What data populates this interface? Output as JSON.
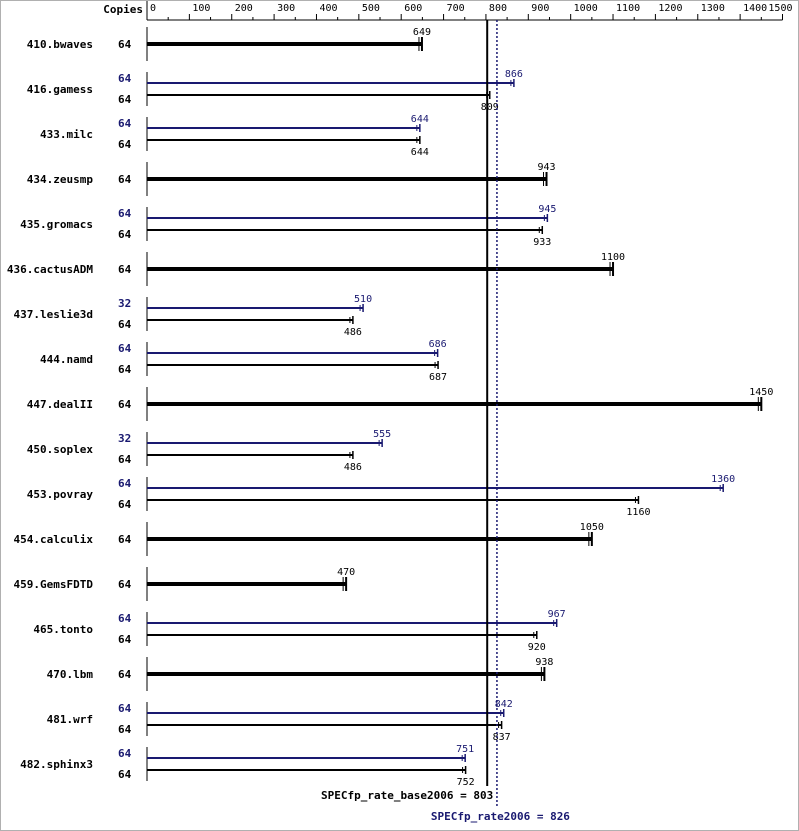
{
  "chart_data": {
    "type": "bar",
    "axis": {
      "header": "Copies",
      "ticks": [
        0,
        100,
        200,
        300,
        400,
        500,
        600,
        700,
        800,
        900,
        1000,
        1100,
        1200,
        1300,
        1400,
        1500
      ],
      "tick_labels": [
        "0",
        "100",
        "200",
        "300",
        "400",
        "500",
        "600",
        "700",
        "800",
        "900",
        "1000",
        "1100",
        "1200",
        "1300",
        "1400",
        "1500"
      ],
      "xlim": [
        0,
        1500
      ]
    },
    "colors": {
      "base": "#000000",
      "peak": "#191970"
    },
    "benchmarks": [
      {
        "name": "410.bwaves",
        "base_copies": "64",
        "base": 649,
        "base_label": "649"
      },
      {
        "name": "416.gamess",
        "peak_copies": "64",
        "peak": 866,
        "peak_label": "866",
        "base_copies": "64",
        "base": 809,
        "base_label": "809"
      },
      {
        "name": "433.milc",
        "peak_copies": "64",
        "peak": 644,
        "peak_label": "644",
        "base_copies": "64",
        "base": 644,
        "base_label": "644"
      },
      {
        "name": "434.zeusmp",
        "base_copies": "64",
        "base": 943,
        "base_label": "943"
      },
      {
        "name": "435.gromacs",
        "peak_copies": "64",
        "peak": 945,
        "peak_label": "945",
        "base_copies": "64",
        "base": 933,
        "base_label": "933"
      },
      {
        "name": "436.cactusADM",
        "base_copies": "64",
        "base": 1100,
        "base_label": "1100"
      },
      {
        "name": "437.leslie3d",
        "peak_copies": "32",
        "peak": 510,
        "peak_label": "510",
        "base_copies": "64",
        "base": 486,
        "base_label": "486"
      },
      {
        "name": "444.namd",
        "peak_copies": "64",
        "peak": 686,
        "peak_label": "686",
        "base_copies": "64",
        "base": 687,
        "base_label": "687"
      },
      {
        "name": "447.dealII",
        "base_copies": "64",
        "base": 1450,
        "base_label": "1450"
      },
      {
        "name": "450.soplex",
        "peak_copies": "32",
        "peak": 555,
        "peak_label": "555",
        "base_copies": "64",
        "base": 486,
        "base_label": "486"
      },
      {
        "name": "453.povray",
        "peak_copies": "64",
        "peak": 1360,
        "peak_label": "1360",
        "base_copies": "64",
        "base": 1160,
        "base_label": "1160"
      },
      {
        "name": "454.calculix",
        "base_copies": "64",
        "base": 1050,
        "base_label": "1050"
      },
      {
        "name": "459.GemsFDTD",
        "base_copies": "64",
        "base": 470,
        "base_label": "470"
      },
      {
        "name": "465.tonto",
        "peak_copies": "64",
        "peak": 967,
        "peak_label": "967",
        "base_copies": "64",
        "base": 920,
        "base_label": "920"
      },
      {
        "name": "470.lbm",
        "base_copies": "64",
        "base": 938,
        "base_label": "938"
      },
      {
        "name": "481.wrf",
        "peak_copies": "64",
        "peak": 842,
        "peak_label": "842",
        "base_copies": "64",
        "base": 837,
        "base_label": "837"
      },
      {
        "name": "482.sphinx3",
        "peak_copies": "64",
        "peak": 751,
        "peak_label": "751",
        "base_copies": "64",
        "base": 752,
        "base_label": "752"
      }
    ],
    "reference_lines": {
      "base": {
        "value": 803,
        "label": "SPECfp_rate_base2006 = 803"
      },
      "peak": {
        "value": 826,
        "label": "SPECfp_rate2006 = 826"
      }
    },
    "grid": false,
    "legend": "none"
  }
}
